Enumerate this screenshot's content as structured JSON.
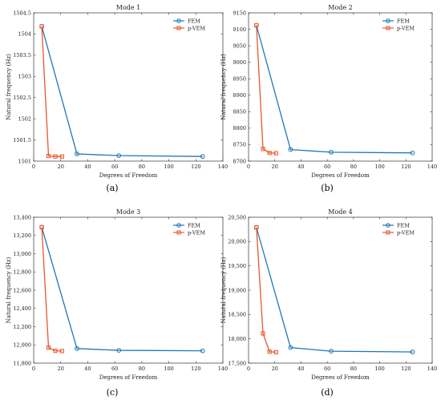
{
  "colors": {
    "fem": "#1f77b4",
    "pvem": "#e8572a",
    "axis": "#333333"
  },
  "chart_data": [
    {
      "type": "line",
      "title": "Mode 1",
      "xlabel": "Degrees of Freedom",
      "ylabel": "Natural frequency (Hz)",
      "xlim": [
        0,
        140
      ],
      "ylim": [
        1501,
        1504.5
      ],
      "xticks": [
        0,
        20,
        40,
        60,
        80,
        100,
        120,
        140
      ],
      "xtick_labels": [
        "0",
        "20",
        "40",
        "60",
        "80",
        "100",
        "120",
        "140"
      ],
      "yticks": [
        1501,
        1501.5,
        1502,
        1502.5,
        1503,
        1503.5,
        1504,
        1504.5
      ],
      "ytick_labels": [
        "1501",
        "1501.5",
        "1502",
        "1502.5",
        "1503",
        "1503.5",
        "1504",
        "1504.5"
      ],
      "legend_position": "top-right",
      "sublabel": "(a)",
      "series": [
        {
          "name": "FEM",
          "marker": "circle",
          "x": [
            6,
            32,
            63,
            125
          ],
          "y": [
            1504.18,
            1501.17,
            1501.13,
            1501.11
          ]
        },
        {
          "name": "p-VEM",
          "marker": "square",
          "x": [
            6,
            11,
            16,
            21
          ],
          "y": [
            1504.18,
            1501.12,
            1501.11,
            1501.11
          ]
        }
      ]
    },
    {
      "type": "line",
      "title": "Mode 2",
      "xlabel": "Degrees of Freedom",
      "ylabel": "Natural frequency (Hz)",
      "xlim": [
        0,
        140
      ],
      "ylim": [
        8700,
        9150
      ],
      "xticks": [
        0,
        20,
        40,
        60,
        80,
        100,
        120,
        140
      ],
      "xtick_labels": [
        "0",
        "20",
        "40",
        "60",
        "80",
        "100",
        "120",
        "140"
      ],
      "yticks": [
        8700,
        8750,
        8800,
        8850,
        8900,
        8950,
        9000,
        9050,
        9100,
        9150
      ],
      "ytick_labels": [
        "8700",
        "8750",
        "8800",
        "8850",
        "8900",
        "8950",
        "9000",
        "9050",
        "9100",
        "9150"
      ],
      "legend_position": "top-right",
      "sublabel": "(b)",
      "series": [
        {
          "name": "FEM",
          "marker": "circle",
          "x": [
            6,
            32,
            63,
            125
          ],
          "y": [
            9112,
            8735,
            8727,
            8725
          ]
        },
        {
          "name": "p-VEM",
          "marker": "square",
          "x": [
            6,
            11,
            16,
            21
          ],
          "y": [
            9112,
            8737,
            8725,
            8724
          ]
        }
      ]
    },
    {
      "type": "line",
      "title": "Mode 3",
      "xlabel": "Degrees of Freedom",
      "ylabel": "Natural frequency (Hz)",
      "xlim": [
        0,
        140
      ],
      "ylim": [
        11800,
        13400
      ],
      "xticks": [
        0,
        20,
        40,
        60,
        80,
        100,
        120,
        140
      ],
      "xtick_labels": [
        "0",
        "20",
        "40",
        "60",
        "80",
        "100",
        "120",
        "140"
      ],
      "yticks": [
        11800,
        12000,
        12200,
        12400,
        12600,
        12800,
        13000,
        13200,
        13400
      ],
      "ytick_labels": [
        "11,800",
        "12,000",
        "12,200",
        "12,400",
        "12,600",
        "12,800",
        "13,000",
        "13,200",
        "13,400"
      ],
      "legend_position": "top-right",
      "sublabel": "(c)",
      "series": [
        {
          "name": "FEM",
          "marker": "circle",
          "x": [
            6,
            32,
            63,
            125
          ],
          "y": [
            13290,
            11960,
            11940,
            11935
          ]
        },
        {
          "name": "p-VEM",
          "marker": "square",
          "x": [
            6,
            11,
            16,
            21
          ],
          "y": [
            13290,
            11970,
            11935,
            11933
          ]
        }
      ]
    },
    {
      "type": "line",
      "title": "Mode 4",
      "xlabel": "Degrees of Freedom",
      "ylabel": "Natural frequency (Hz)",
      "xlim": [
        0,
        140
      ],
      "ylim": [
        17500,
        20500
      ],
      "xticks": [
        0,
        20,
        40,
        60,
        80,
        100,
        120,
        140
      ],
      "xtick_labels": [
        "0",
        "20",
        "40",
        "60",
        "80",
        "100",
        "120",
        "140"
      ],
      "yticks": [
        17500,
        18000,
        18500,
        19000,
        19500,
        20000,
        20500
      ],
      "ytick_labels": [
        "17,500",
        "18,000",
        "18,500",
        "19,000",
        "19,500",
        "20,000",
        "20,500"
      ],
      "legend_position": "top-right",
      "sublabel": "(d)",
      "series": [
        {
          "name": "FEM",
          "marker": "circle",
          "x": [
            6,
            32,
            63,
            125
          ],
          "y": [
            20290,
            17820,
            17745,
            17730
          ]
        },
        {
          "name": "p-VEM",
          "marker": "square",
          "x": [
            6,
            11,
            16,
            21
          ],
          "y": [
            20290,
            18110,
            17735,
            17725
          ]
        }
      ]
    }
  ]
}
